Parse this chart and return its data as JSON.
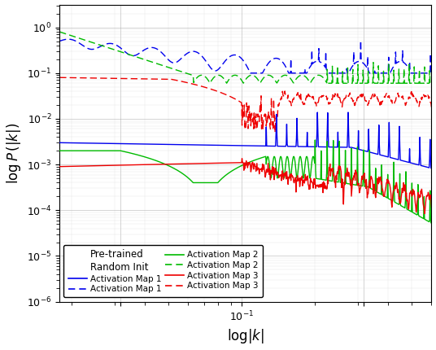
{
  "xlabel": "log $|k|$",
  "ylabel": "log $P\\,(|k|)$",
  "colors": {
    "blue": "#0000EE",
    "green": "#00BB00",
    "red": "#EE0000"
  },
  "xlim_log": [
    -1.75,
    -0.22
  ],
  "ylim_log": [
    -6,
    0.5
  ],
  "xticks_log": [
    -1.5,
    -1.0,
    -0.5
  ],
  "yticks_log": [
    -6,
    -5,
    -4,
    -3,
    -2,
    -1,
    0
  ],
  "legend_col1_title": "Pre-trained",
  "legend_col2_title": "Random Init",
  "legend_entries": [
    "Activation Map 1",
    "Activation Map 2",
    "Activation Map 3"
  ]
}
